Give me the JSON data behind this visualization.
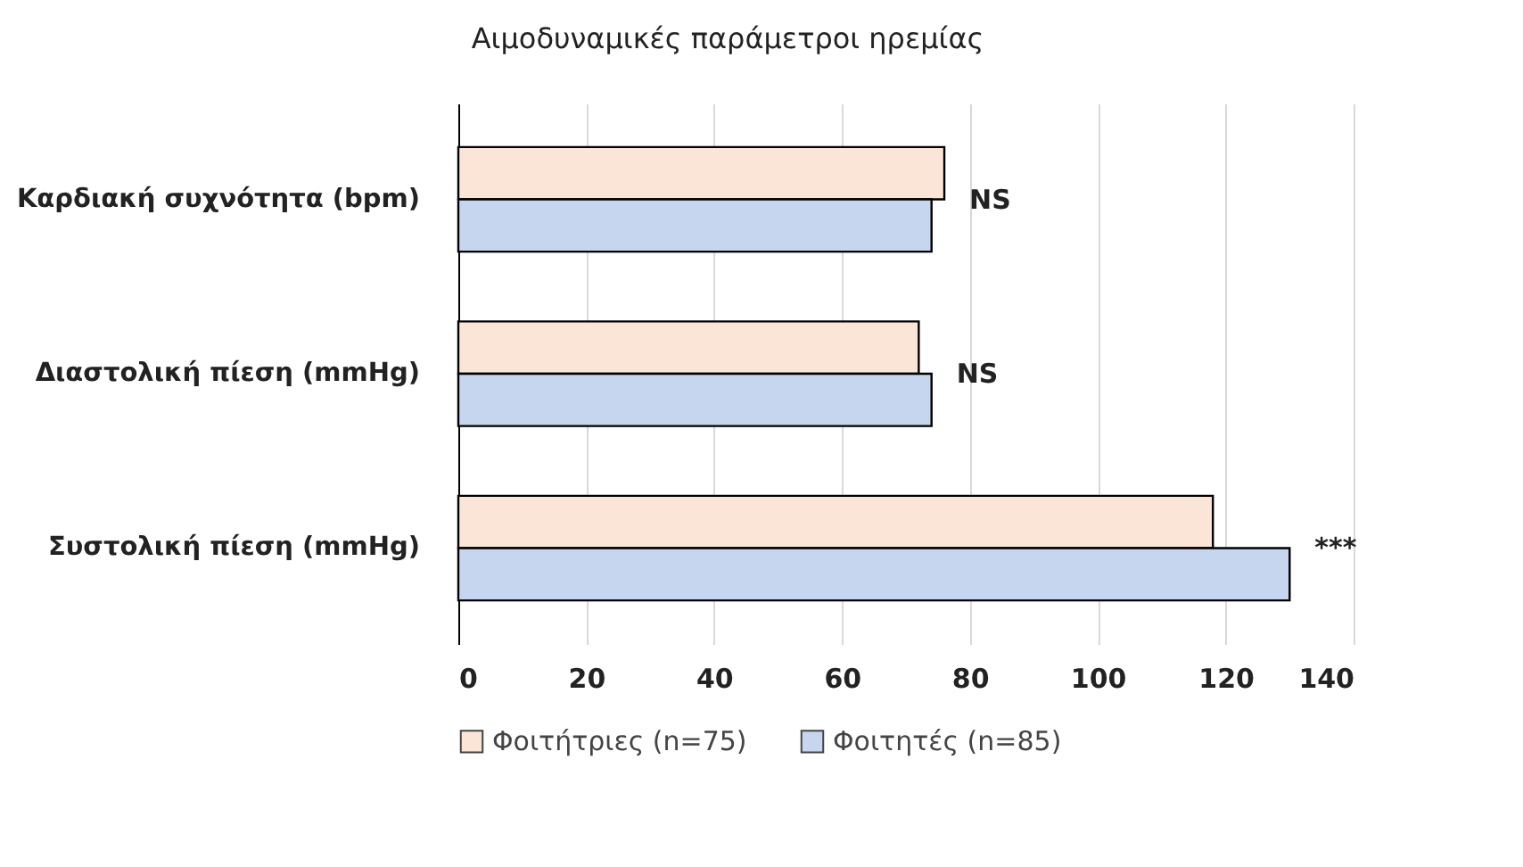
{
  "chart_data": {
    "type": "bar",
    "orientation": "horizontal",
    "title": "Αιμοδυναμικές παράμετροι ηρεμίας",
    "categories": [
      "Καρδιακή συχνότητα (bpm)",
      "Διαστολική πίεση (mmHg)",
      "Συστολική πίεση (mmHg)"
    ],
    "series": [
      {
        "name": "Φοιτήτριες (n=75)",
        "color": "#fbe5d6",
        "values": [
          76,
          72,
          118
        ]
      },
      {
        "name": "Φοιτητές (n=85)",
        "color": "#c5d6ee",
        "values": [
          74,
          74,
          130
        ]
      }
    ],
    "xlim": [
      0,
      140
    ],
    "xticks": [
      0,
      20,
      40,
      60,
      80,
      100,
      120,
      140
    ],
    "grid": "x",
    "legend": "bottom",
    "annotations": [
      {
        "text": "NS",
        "x": 76,
        "y": "Καρδιακή συχνότητα (bpm)"
      },
      {
        "text": "NS",
        "x": 74,
        "y": "Διαστολική πίεση (mmHg)"
      },
      {
        "text": "***",
        "x": 130,
        "y": "Συστολική πίεση (mmHg)"
      }
    ]
  }
}
